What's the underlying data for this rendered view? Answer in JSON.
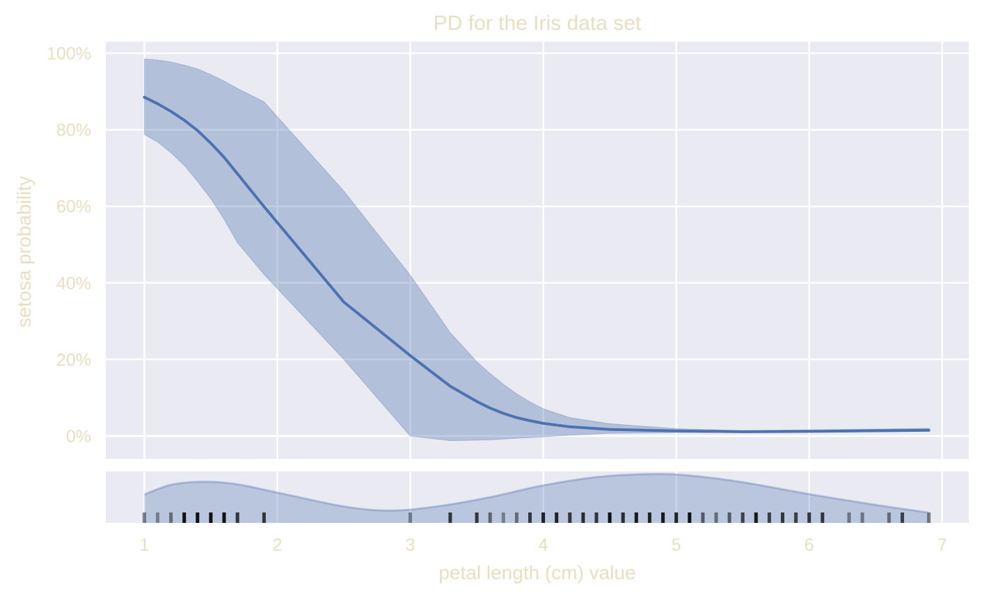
{
  "chart_data": {
    "type": "line",
    "title": "PD for the Iris data set",
    "xlabel": "petal length (cm) value",
    "ylabel": "setosa probability",
    "xlim": [
      0.71,
      7.2
    ],
    "ylim": [
      -6,
      103
    ],
    "x_ticks": [
      1,
      2,
      3,
      4,
      5,
      6,
      7
    ],
    "x_tick_labels": [
      "1",
      "2",
      "3",
      "4",
      "5",
      "6",
      "7"
    ],
    "y_ticks": [
      0,
      20,
      40,
      60,
      80,
      100
    ],
    "y_tick_labels": [
      "0%",
      "20%",
      "40%",
      "60%",
      "80%",
      "100%"
    ],
    "grid": true,
    "series": [
      {
        "color": "#4c72b0",
        "x": [
          1.0,
          1.1,
          1.2,
          1.3,
          1.4,
          1.5,
          1.6,
          1.7,
          1.9,
          2.5,
          3.0,
          3.3,
          3.5,
          3.6,
          3.7,
          3.8,
          3.9,
          4.0,
          4.2,
          4.5,
          5.0,
          5.5,
          6.0,
          6.9
        ],
        "y": [
          88.5,
          86.8,
          84.8,
          82.5,
          79.8,
          76.5,
          72.8,
          68.5,
          59.9,
          35.0,
          21.0,
          13.0,
          9.0,
          7.3,
          5.9,
          4.8,
          4.0,
          3.3,
          2.4,
          1.7,
          1.3,
          1.1,
          1.2,
          1.5
        ],
        "lower": [
          78.8,
          76.8,
          74.0,
          70.7,
          66.5,
          62.0,
          56.6,
          50.5,
          42.2,
          20.0,
          0.0,
          -1.2,
          -1.1,
          -1.0,
          -0.8,
          -0.6,
          -0.4,
          -0.2,
          0.2,
          0.7,
          0.9,
          0.9,
          1.0,
          1.2
        ],
        "upper": [
          98.5,
          98.2,
          97.7,
          96.9,
          95.9,
          94.4,
          92.7,
          90.8,
          87.3,
          64.0,
          42.0,
          27.0,
          19.4,
          16.3,
          13.5,
          11.0,
          8.9,
          7.1,
          4.8,
          3.2,
          1.9,
          1.4,
          1.6,
          2.0
        ]
      }
    ],
    "distribution": {
      "density_x": [
        1.0,
        1.2,
        1.45,
        1.7,
        2.0,
        2.5,
        2.85,
        3.2,
        3.6,
        4.0,
        4.4,
        4.8,
        5.1,
        5.5,
        6.0,
        6.5,
        6.9
      ],
      "density_y": [
        0.55,
        0.74,
        0.8,
        0.75,
        0.59,
        0.32,
        0.24,
        0.32,
        0.5,
        0.73,
        0.89,
        0.95,
        0.92,
        0.79,
        0.56,
        0.35,
        0.2
      ],
      "rug": [
        1.0,
        1.1,
        1.2,
        1.3,
        1.4,
        1.5,
        1.6,
        1.7,
        1.9,
        3.0,
        3.3,
        3.5,
        3.6,
        3.7,
        3.8,
        3.9,
        4.0,
        4.1,
        4.2,
        4.3,
        4.4,
        4.5,
        4.6,
        4.7,
        4.8,
        4.9,
        5.0,
        5.1,
        5.2,
        5.3,
        5.4,
        5.5,
        5.6,
        5.7,
        5.8,
        5.9,
        6.0,
        6.1,
        6.3,
        6.4,
        6.6,
        6.7,
        6.9
      ],
      "rug_strength": [
        0.5,
        0.4,
        0.5,
        1.0,
        1.0,
        1.0,
        1.0,
        0.8,
        0.8,
        0.45,
        0.8,
        0.8,
        0.55,
        0.4,
        0.5,
        0.8,
        0.9,
        0.9,
        0.8,
        0.85,
        0.8,
        1.0,
        0.85,
        0.95,
        0.9,
        0.95,
        0.9,
        1.0,
        0.6,
        0.5,
        0.6,
        0.75,
        0.95,
        0.75,
        0.8,
        0.75,
        0.8,
        0.8,
        0.45,
        0.45,
        0.5,
        0.75,
        0.5
      ]
    }
  }
}
